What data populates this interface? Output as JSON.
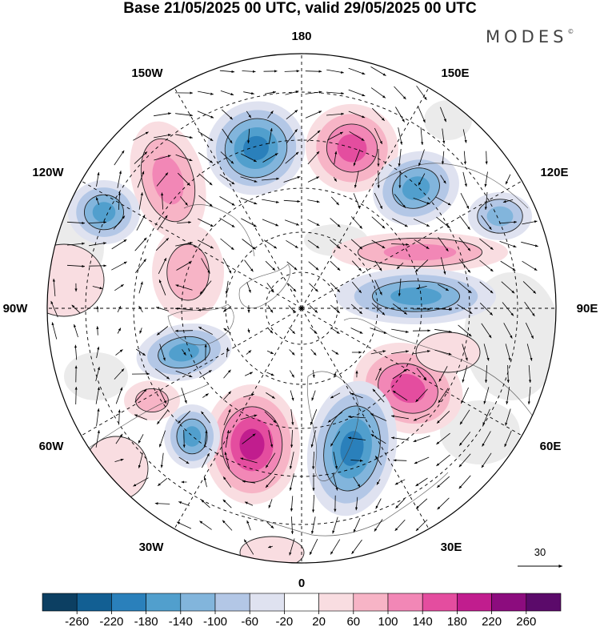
{
  "title": "Base 21/05/2025 00 UTC, valid 29/05/2025 00 UTC",
  "brand": {
    "name": "MODES",
    "mark": "©"
  },
  "map": {
    "projection": "north polar stereographic",
    "longitude_labels": [
      "180",
      "150E",
      "120E",
      "90E",
      "60E",
      "30E",
      "0",
      "30W",
      "60W",
      "90W",
      "120W",
      "150W"
    ],
    "vector_reference": {
      "value": "30"
    }
  },
  "colorbar": {
    "ticks": [
      "-260",
      "-220",
      "-180",
      "-140",
      "-100",
      "-60",
      "-20",
      "20",
      "60",
      "100",
      "140",
      "180",
      "220",
      "260"
    ],
    "colors": [
      "#0c3f62",
      "#125f93",
      "#2a80bb",
      "#519fcd",
      "#82b5dc",
      "#b3c7e6",
      "#dfe2f0",
      "#ffffff",
      "#f9dde1",
      "#f7b4c6",
      "#f287b6",
      "#e44d9f",
      "#c11d8e",
      "#8c0c7e",
      "#5b0a6a"
    ]
  }
}
